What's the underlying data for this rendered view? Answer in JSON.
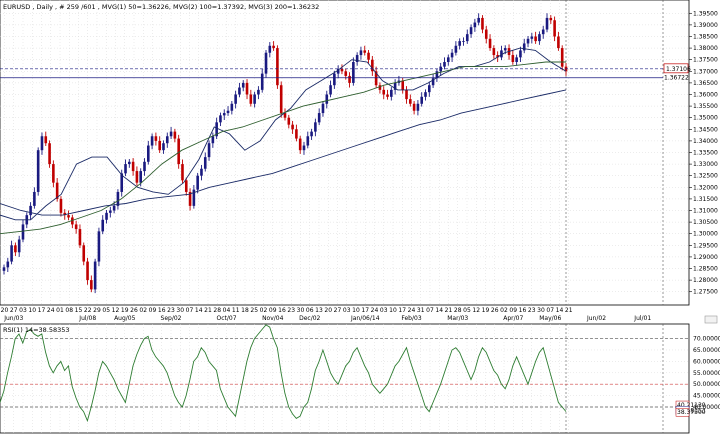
{
  "chart_data": [
    {
      "type": "candlestick",
      "title": "EURUSD , Daily , # 259 /601 , MVG(1) 50=1.36226, MVG(2) 100=1.37392, MVG(3) 200=1.36232",
      "x_tick_labels": [
        "20",
        "27",
        "03",
        "10",
        "17",
        "24",
        "01",
        "08",
        "15",
        "22",
        "29",
        "05",
        "12",
        "19",
        "26",
        "02",
        "09",
        "16",
        "23",
        "30",
        "07",
        "14",
        "21",
        "28",
        "04",
        "11",
        "18",
        "25",
        "02",
        "09",
        "16",
        "23",
        "30",
        "06",
        "13",
        "20",
        "27",
        "03",
        "10",
        "17",
        "24",
        "03",
        "10",
        "17",
        "24",
        "31",
        "07",
        "14",
        "21",
        "28",
        "05",
        "12",
        "19",
        "26",
        "02",
        "09",
        "16",
        "23",
        "30",
        "07",
        "14",
        "21"
      ],
      "x_month_labels": [
        "Jun/03",
        "Jul/08",
        "Aug/05",
        "Sep/02",
        "Oct/07",
        "Nov/04",
        "Dec/02",
        "Jan/06/14",
        "Feb/03",
        "Mar/03",
        "Apr/07",
        "May/06",
        "Jun/02",
        "Jul/01"
      ],
      "y_tick_labels": [
        "1.39500",
        "1.39000",
        "1.38500",
        "1.38000",
        "1.37500",
        "1.37000",
        "1.36500",
        "1.36000",
        "1.35500",
        "1.35000",
        "1.34500",
        "1.34000",
        "1.33500",
        "1.33000",
        "1.32500",
        "1.32000",
        "1.31500",
        "1.31000",
        "1.30500",
        "1.30000",
        "1.29500",
        "1.29000",
        "1.28500",
        "1.28000",
        "1.27500"
      ],
      "ylim": [
        1.271,
        1.399
      ],
      "price_tags": [
        "1.37106",
        "1.36722"
      ],
      "grid": true,
      "series": [
        {
          "values": [
            1.2855,
            1.288,
            1.295,
            1.292,
            1.2975,
            1.304,
            1.308,
            1.312,
            1.318,
            1.336,
            1.342,
            1.339,
            1.33,
            1.322,
            1.315,
            1.309,
            1.308,
            1.307,
            1.304,
            1.302,
            1.295,
            1.288,
            1.28,
            1.276,
            1.288,
            1.301,
            1.306,
            1.309,
            1.31,
            1.312,
            1.318,
            1.326,
            1.33,
            1.331,
            1.327,
            1.322,
            1.327,
            1.331,
            1.338,
            1.342,
            1.34,
            1.336,
            1.339,
            1.342,
            1.344,
            1.341,
            1.33,
            1.323,
            1.318,
            1.312,
            1.319,
            1.325,
            1.328,
            1.333,
            1.339,
            1.342,
            1.348,
            1.351,
            1.352,
            1.353,
            1.356,
            1.36,
            1.363,
            1.365,
            1.36,
            1.356,
            1.36,
            1.362,
            1.369,
            1.378,
            1.381,
            1.38,
            1.364,
            1.352,
            1.35,
            1.347,
            1.345,
            1.341,
            1.336,
            1.338,
            1.342,
            1.344,
            1.348,
            1.352,
            1.356,
            1.36,
            1.364,
            1.369,
            1.371,
            1.37,
            1.368,
            1.365,
            1.374,
            1.377,
            1.379,
            1.378,
            1.375,
            1.37,
            1.364,
            1.362,
            1.36,
            1.359,
            1.362,
            1.365,
            1.366,
            1.362,
            1.358,
            1.356,
            1.353,
            1.356,
            1.359,
            1.361,
            1.364,
            1.367,
            1.37,
            1.372,
            1.374,
            1.376,
            1.378,
            1.381,
            1.383,
            1.383,
            1.386,
            1.389,
            1.391,
            1.393,
            1.388,
            1.384,
            1.38,
            1.377,
            1.376,
            1.379,
            1.38,
            1.377,
            1.374,
            1.376,
            1.379,
            1.382,
            1.384,
            1.385,
            1.383,
            1.386,
            1.388,
            1.393,
            1.392,
            1.385,
            1.38,
            1.372,
            1.37
          ]
        },
        {
          "values": [
            1.308,
            1.306,
            1.306,
            1.312,
            1.317,
            1.33,
            1.333,
            1.333,
            1.325,
            1.32,
            1.318,
            1.317,
            1.322,
            1.332,
            1.346,
            1.343,
            1.336,
            1.34,
            1.349,
            1.354,
            1.362,
            1.366,
            1.37,
            1.375,
            1.374,
            1.366,
            1.362,
            1.362,
            1.365,
            1.369,
            1.372,
            1.372,
            1.374,
            1.378,
            1.38,
            1.379,
            1.374,
            1.37
          ]
        },
        {
          "values": [
            1.3,
            1.301,
            1.302,
            1.304,
            1.307,
            1.31,
            1.315,
            1.322,
            1.33,
            1.336,
            1.34,
            1.344,
            1.346,
            1.349,
            1.352,
            1.355,
            1.357,
            1.359,
            1.361,
            1.364,
            1.366,
            1.368,
            1.37,
            1.372,
            1.372,
            1.372,
            1.373,
            1.374,
            1.374
          ]
        },
        {
          "values": [
            1.313,
            1.31,
            1.308,
            1.308,
            1.31,
            1.312,
            1.313,
            1.315,
            1.316,
            1.317,
            1.32,
            1.322,
            1.324,
            1.326,
            1.329,
            1.332,
            1.335,
            1.338,
            1.341,
            1.344,
            1.347,
            1.349,
            1.352,
            1.354,
            1.356,
            1.358,
            1.36,
            1.362
          ]
        }
      ]
    },
    {
      "type": "line",
      "title": "RSI(1) 14=38.58353",
      "y_tick_labels": [
        "70.00000",
        "65.00000",
        "60.00000",
        "55.00000",
        "50.00000",
        "45.00000",
        "40.00000"
      ],
      "ylim": [
        29.5,
        75.5
      ],
      "price_tags": [
        "40.21130",
        "38.58353",
        "38.37500"
      ],
      "reference_lines": [
        70,
        50,
        40
      ],
      "series": [
        {
          "values": [
            42,
            47,
            55,
            62,
            70,
            72,
            68,
            73,
            74,
            72,
            71,
            72,
            64,
            58,
            55,
            58,
            60,
            56,
            58,
            49,
            44,
            40,
            38,
            34,
            40,
            47,
            55,
            60,
            58,
            55,
            52,
            48,
            45,
            42,
            50,
            58,
            63,
            67,
            70,
            71,
            65,
            62,
            60,
            58,
            55,
            50,
            45,
            42,
            40,
            45,
            52,
            60,
            62,
            66,
            64,
            60,
            58,
            56,
            48,
            44,
            40,
            38,
            36,
            44,
            52,
            60,
            66,
            70,
            72,
            74,
            76,
            75,
            70,
            66,
            55,
            46,
            40,
            37,
            35,
            36,
            40,
            42,
            48,
            56,
            60,
            65,
            60,
            55,
            52,
            50,
            54,
            58,
            60,
            64,
            66,
            62,
            58,
            55,
            50,
            48,
            46,
            48,
            50,
            54,
            58,
            60,
            63,
            66,
            60,
            55,
            50,
            45,
            40,
            38,
            42,
            46,
            50,
            55,
            60,
            65,
            66,
            64,
            60,
            56,
            52,
            56,
            62,
            66,
            64,
            60,
            56,
            54,
            50,
            48,
            52,
            58,
            62,
            58,
            54,
            50,
            55,
            60,
            64,
            66,
            60,
            54,
            48,
            42,
            40,
            38
          ]
        }
      ]
    }
  ]
}
